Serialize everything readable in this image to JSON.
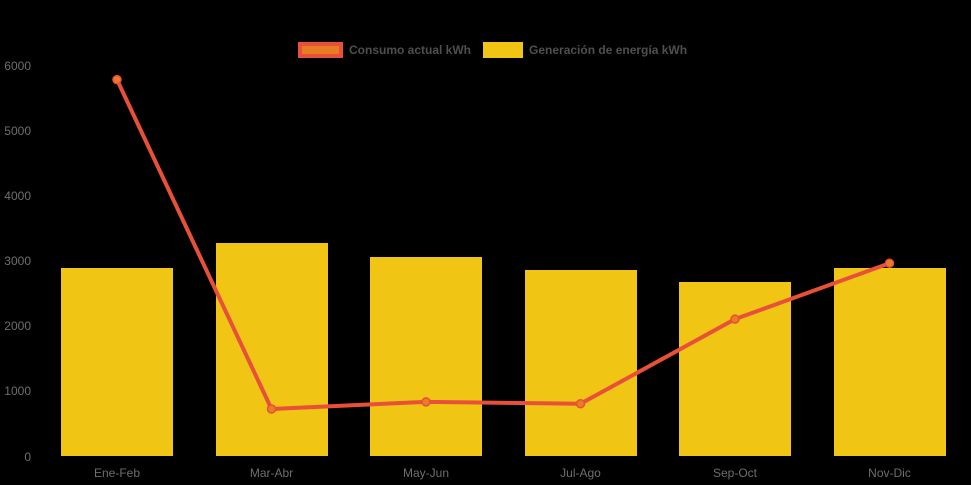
{
  "chart_data": {
    "type": "combo",
    "categories": [
      "Ene-Feb",
      "Mar-Abr",
      "May-Jun",
      "Jul-Ago",
      "Sep-Oct",
      "Nov-Dic"
    ],
    "series": [
      {
        "name": "Consumo actual kWh",
        "type": "line",
        "values": [
          5790,
          730,
          840,
          810,
          2110,
          2970
        ]
      },
      {
        "name": "Generación de energía kWh",
        "type": "bar",
        "values": [
          2900,
          3280,
          3060,
          2860,
          2680,
          2890
        ]
      }
    ],
    "title": "",
    "xlabel": "",
    "ylabel": "",
    "ylim": [
      0,
      6000
    ],
    "yticks": [
      0,
      1000,
      2000,
      3000,
      4000,
      5000,
      6000
    ],
    "grid": false,
    "legend_position": "top-center",
    "colors": {
      "background": "#000000",
      "bar_fill": "#F0C514",
      "line_stroke": "#E8503A",
      "marker_fill": "#E87D26",
      "axis_label_text": "#6E6E6E",
      "legend_text": "#4F4F4F"
    }
  }
}
